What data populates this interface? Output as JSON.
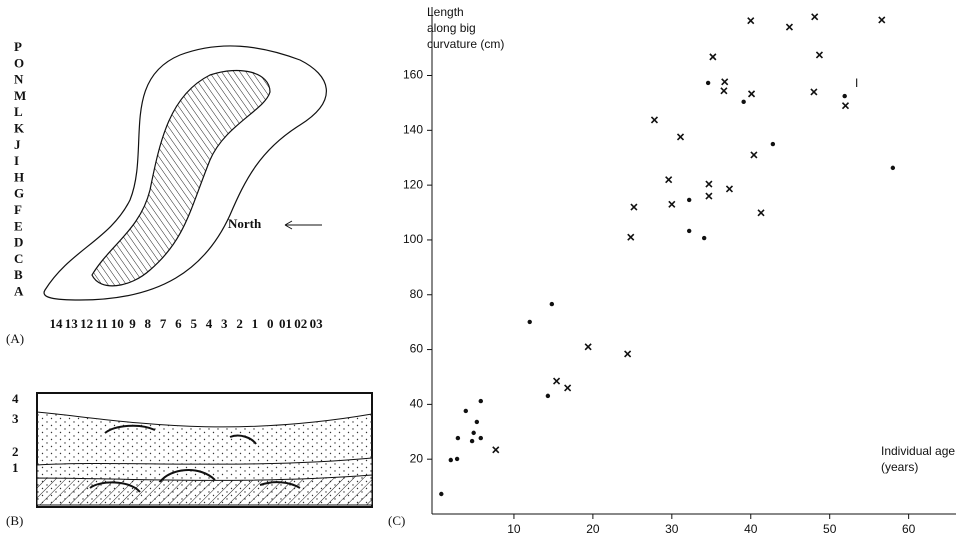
{
  "chart_data": {
    "type": "scatter",
    "panel_label": "(C)",
    "y_label_lines": [
      "Length",
      "along big",
      "curvature (cm)"
    ],
    "x_label_lines": [
      "Individual age",
      "(years)"
    ],
    "xlim": [
      0,
      66
    ],
    "ylim": [
      0,
      185
    ],
    "xticks": [
      10,
      20,
      30,
      40,
      50,
      60
    ],
    "yticks": [
      20,
      40,
      60,
      80,
      100,
      120,
      140,
      160
    ],
    "series": [
      {
        "marker": "dot",
        "color": "#111111",
        "x": [
          0.8,
          2.0,
          2.8,
          2.9,
          3.9,
          4.9,
          4.7,
          5.3,
          5.8,
          5.8,
          12.0,
          14.8,
          14.3,
          32.2,
          32.2,
          34.1,
          34.6,
          39.1,
          42.8,
          51.9,
          58.0
        ],
        "values": [
          7.3,
          19.7,
          20.1,
          27.7,
          37.6,
          29.6,
          26.6,
          33.6,
          41.2,
          27.7,
          70.1,
          76.6,
          43.1,
          114.6,
          103.3,
          100.7,
          157.3,
          150.4,
          135.0,
          152.5,
          126.3
        ]
      },
      {
        "marker": "cross",
        "color": "#111111",
        "x": [
          7.7,
          15.4,
          16.8,
          19.4,
          24.4,
          24.8,
          25.2,
          27.8,
          29.6,
          30.0,
          31.1,
          34.7,
          34.7,
          35.2,
          36.7,
          36.6,
          37.3,
          40.0,
          40.1,
          40.4,
          41.3,
          44.9,
          48.1,
          48.0,
          48.7,
          52.0,
          56.6
        ],
        "values": [
          23.4,
          48.5,
          46.0,
          61.0,
          58.4,
          101.0,
          112.0,
          143.8,
          122.0,
          113.0,
          137.6,
          120.4,
          116.0,
          166.8,
          157.7,
          154.4,
          118.6,
          180.0,
          153.3,
          131.0,
          109.9,
          177.7,
          181.4,
          154.0,
          167.5,
          149.0,
          180.3
        ]
      }
    ],
    "annotations": [
      {
        "text": "I",
        "x": 53.2,
        "y": 157
      }
    ]
  },
  "diagram": {
    "panel_a": {
      "label": "(A)",
      "rows": [
        "P",
        "O",
        "N",
        "M",
        "L",
        "K",
        "J",
        "I",
        "H",
        "G",
        "F",
        "E",
        "D",
        "C",
        "B",
        "A"
      ],
      "columns": [
        "14",
        "13",
        "12",
        "11",
        "10",
        "9",
        "8",
        "7",
        "6",
        "5",
        "4",
        "3",
        "2",
        "1",
        "0",
        "01",
        "02",
        "03"
      ],
      "direction": "North"
    },
    "panel_b": {
      "label": "(B)",
      "layers": [
        "4",
        "3",
        "2",
        "1"
      ]
    }
  }
}
